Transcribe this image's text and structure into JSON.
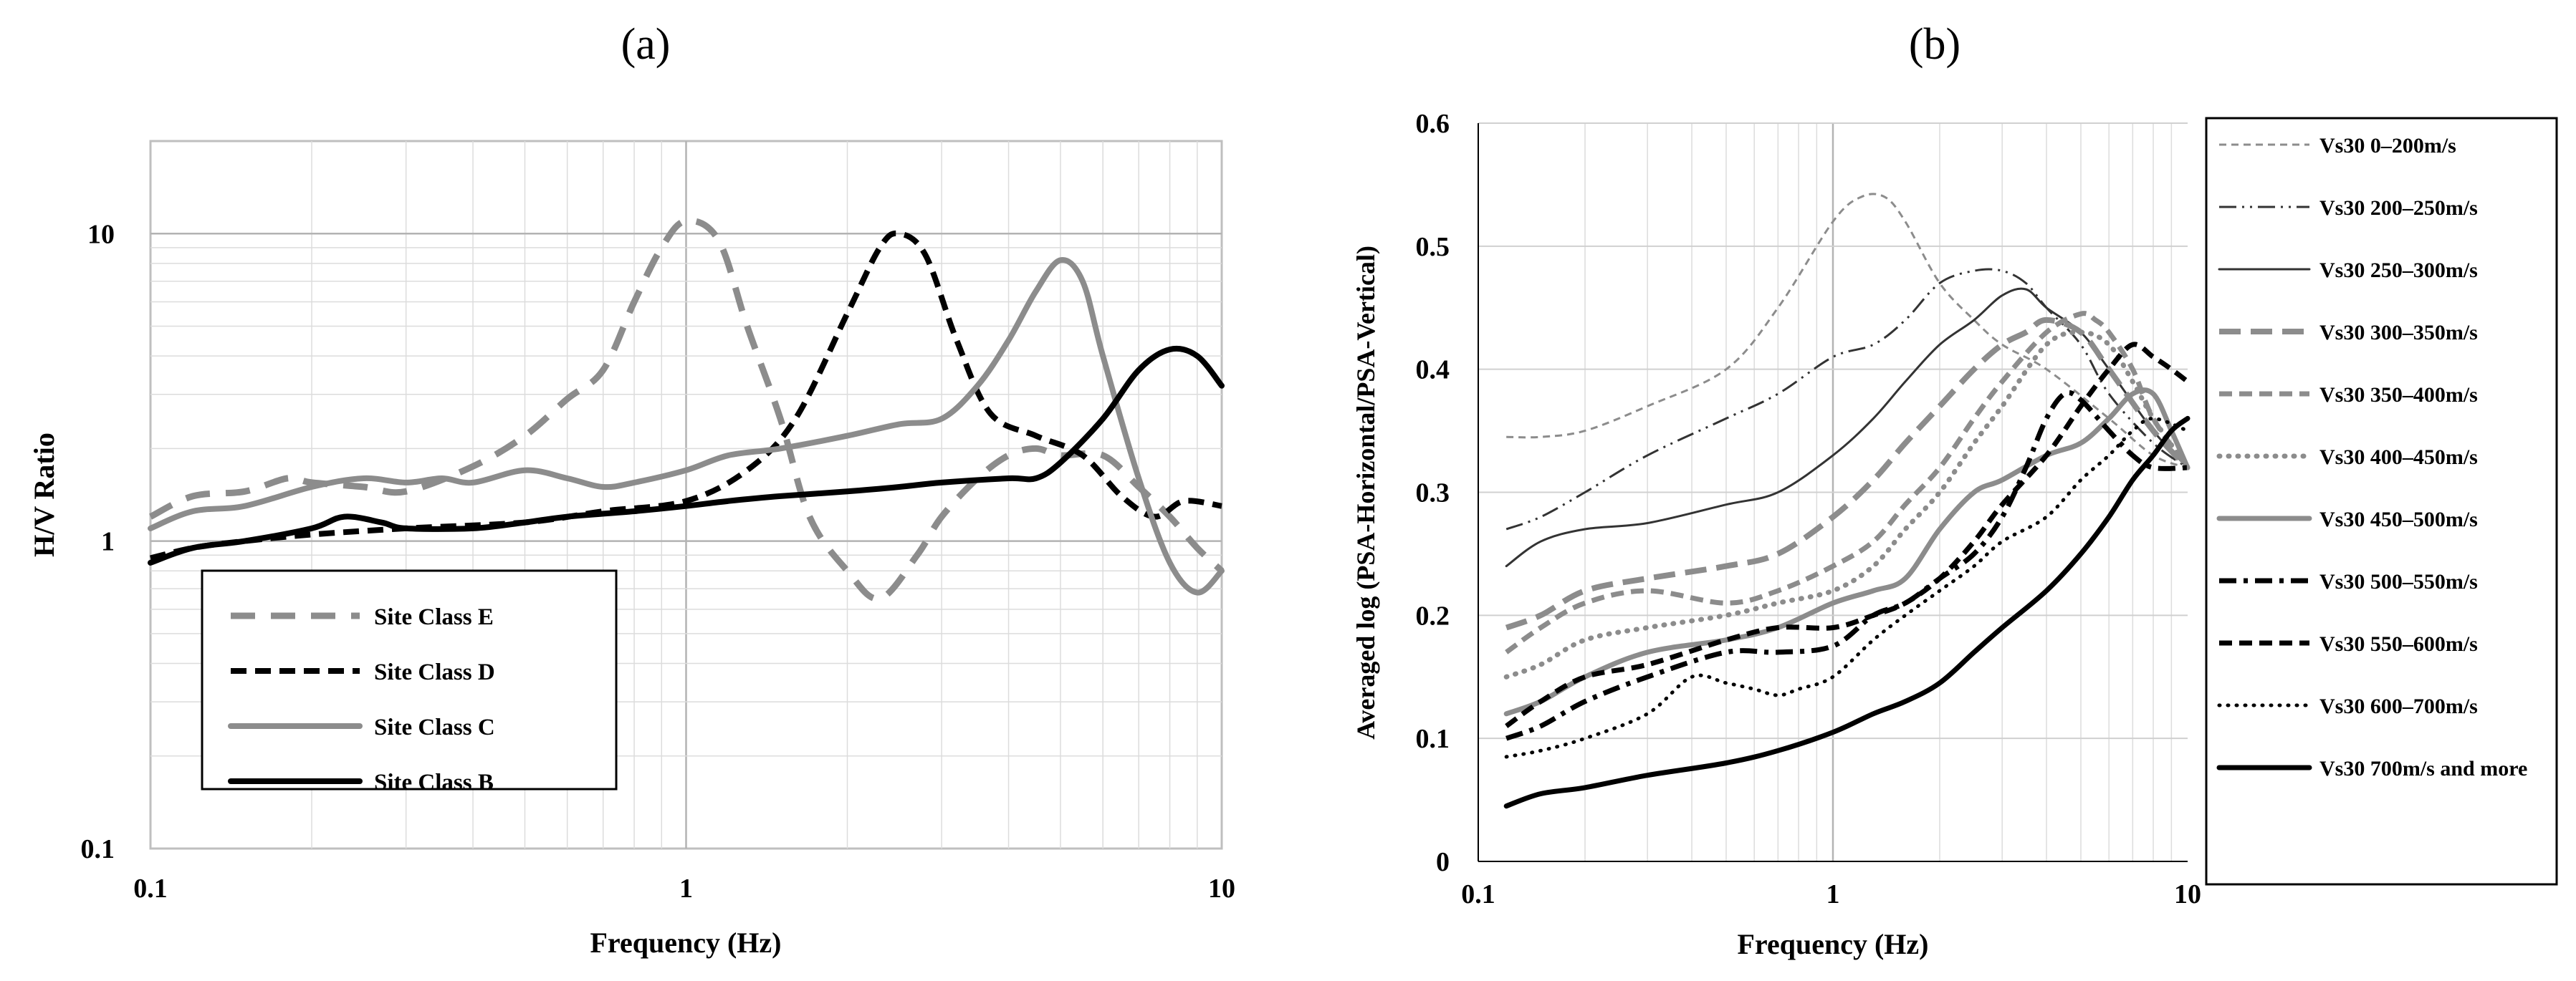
{
  "chart_data": [
    {
      "panel_label": "(a)",
      "type": "line",
      "xlabel": "Frequency (Hz)",
      "ylabel": "H/V Ratio",
      "xscale": "log",
      "yscale": "log",
      "xlim": [
        0.1,
        10
      ],
      "ylim": [
        0.1,
        20
      ],
      "xticks": [
        0.1,
        1,
        10
      ],
      "xtick_labels": [
        "0.1",
        "1",
        "10"
      ],
      "yticks": [
        0.1,
        1,
        10
      ],
      "ytick_labels": [
        "0.1",
        "1",
        "10"
      ],
      "grid": true,
      "legend_position": "bottom-left",
      "series": [
        {
          "name": "Site Class E",
          "color": "#8c8c8c",
          "dash": "long-dash",
          "x": [
            0.1,
            0.12,
            0.15,
            0.18,
            0.2,
            0.25,
            0.3,
            0.4,
            0.5,
            0.6,
            0.7,
            0.8,
            0.9,
            1.0,
            1.15,
            1.3,
            1.5,
            1.7,
            2.0,
            2.3,
            2.7,
            3.0,
            3.5,
            4.0,
            4.5,
            5.0,
            6.0,
            7.0,
            8.0,
            9.0,
            10.0
          ],
          "y": [
            1.2,
            1.4,
            1.45,
            1.6,
            1.55,
            1.5,
            1.45,
            1.75,
            2.2,
            2.9,
            3.6,
            6.0,
            9.0,
            11.0,
            9.5,
            5.0,
            2.5,
            1.2,
            0.8,
            0.65,
            0.9,
            1.2,
            1.6,
            1.9,
            2.0,
            1.9,
            1.9,
            1.5,
            1.2,
            0.95,
            0.8
          ]
        },
        {
          "name": "Site Class D",
          "color": "#000000",
          "dash": "dash",
          "x": [
            0.1,
            0.12,
            0.15,
            0.2,
            0.3,
            0.5,
            0.7,
            1.0,
            1.3,
            1.6,
            2.0,
            2.3,
            2.5,
            2.8,
            3.2,
            3.7,
            4.5,
            5.5,
            6.5,
            7.5,
            8.5,
            10.0
          ],
          "y": [
            0.88,
            0.95,
            1.0,
            1.05,
            1.1,
            1.15,
            1.25,
            1.35,
            1.7,
            2.5,
            5.5,
            9.0,
            10.0,
            8.5,
            4.5,
            2.6,
            2.2,
            1.9,
            1.4,
            1.2,
            1.35,
            1.3
          ]
        },
        {
          "name": "Site Class C",
          "color": "#8c8c8c",
          "dash": "solid",
          "x": [
            0.1,
            0.12,
            0.15,
            0.2,
            0.25,
            0.3,
            0.35,
            0.4,
            0.5,
            0.6,
            0.7,
            0.8,
            1.0,
            1.2,
            1.5,
            2.0,
            2.5,
            3.0,
            3.5,
            4.0,
            4.5,
            5.0,
            5.5,
            6.0,
            7.0,
            8.0,
            9.0,
            10.0
          ],
          "y": [
            1.1,
            1.25,
            1.3,
            1.5,
            1.6,
            1.55,
            1.6,
            1.55,
            1.7,
            1.6,
            1.5,
            1.55,
            1.7,
            1.9,
            2.0,
            2.2,
            2.4,
            2.5,
            3.2,
            4.5,
            6.5,
            8.2,
            7.0,
            4.0,
            1.6,
            0.85,
            0.68,
            0.8
          ]
        },
        {
          "name": "Site Class B",
          "color": "#000000",
          "dash": "solid",
          "x": [
            0.1,
            0.12,
            0.15,
            0.2,
            0.23,
            0.27,
            0.3,
            0.4,
            0.5,
            0.6,
            0.8,
            1.0,
            1.2,
            1.5,
            2.0,
            2.5,
            3.0,
            4.0,
            4.5,
            5.0,
            6.0,
            7.0,
            8.0,
            9.0,
            10.0
          ],
          "y": [
            0.85,
            0.95,
            1.0,
            1.1,
            1.2,
            1.15,
            1.1,
            1.1,
            1.15,
            1.2,
            1.25,
            1.3,
            1.35,
            1.4,
            1.45,
            1.5,
            1.55,
            1.6,
            1.6,
            1.8,
            2.5,
            3.6,
            4.2,
            4.0,
            3.2
          ]
        }
      ]
    },
    {
      "panel_label": "(b)",
      "type": "line",
      "xlabel": "Frequency (Hz)",
      "ylabel": "Averaged log (PSA-Horizontal/PSA-Vertical)",
      "xscale": "log",
      "yscale": "linear",
      "xlim": [
        0.1,
        10
      ],
      "ylim": [
        0,
        0.6
      ],
      "xticks": [
        0.1,
        1,
        10
      ],
      "xtick_labels": [
        "0.1",
        "1",
        "10"
      ],
      "yticks": [
        0,
        0.1,
        0.2,
        0.3,
        0.4,
        0.5,
        0.6
      ],
      "ytick_labels": [
        "0",
        "0.1",
        "0.2",
        "0.3",
        "0.4",
        "0.5",
        "0.6"
      ],
      "grid": true,
      "legend_position": "right",
      "series": [
        {
          "name": "Vs30 0–200m/s",
          "color": "#8c8c8c",
          "dash": "short-dash-thin",
          "x": [
            0.12,
            0.15,
            0.2,
            0.3,
            0.5,
            0.7,
            1.0,
            1.2,
            1.4,
            1.6,
            2.0,
            2.5,
            3.0,
            4.0,
            6.0,
            8.0,
            10.0
          ],
          "y": [
            0.345,
            0.345,
            0.35,
            0.37,
            0.4,
            0.45,
            0.52,
            0.54,
            0.54,
            0.52,
            0.47,
            0.44,
            0.42,
            0.4,
            0.36,
            0.33,
            0.32
          ]
        },
        {
          "name": "Vs30 200–250m/s",
          "color": "#333333",
          "dash": "dash-dot-dot-thin",
          "x": [
            0.12,
            0.15,
            0.2,
            0.3,
            0.5,
            0.7,
            1.0,
            1.3,
            1.6,
            2.0,
            2.5,
            3.0,
            3.5,
            4.0,
            5.0,
            6.0,
            8.0,
            10.0
          ],
          "y": [
            0.27,
            0.28,
            0.3,
            0.33,
            0.36,
            0.38,
            0.41,
            0.42,
            0.44,
            0.47,
            0.48,
            0.48,
            0.47,
            0.45,
            0.42,
            0.38,
            0.34,
            0.32
          ]
        },
        {
          "name": "Vs30 250–300m/s",
          "color": "#333333",
          "dash": "solid-thin",
          "x": [
            0.12,
            0.15,
            0.2,
            0.3,
            0.5,
            0.7,
            1.0,
            1.3,
            1.6,
            2.0,
            2.5,
            3.0,
            3.5,
            4.0,
            5.0,
            6.0,
            8.0,
            10.0
          ],
          "y": [
            0.24,
            0.26,
            0.27,
            0.275,
            0.29,
            0.3,
            0.33,
            0.36,
            0.39,
            0.42,
            0.44,
            0.46,
            0.465,
            0.45,
            0.43,
            0.4,
            0.35,
            0.32
          ]
        },
        {
          "name": "Vs30 300–350m/s",
          "color": "#8c8c8c",
          "dash": "long-dash-thick",
          "x": [
            0.12,
            0.15,
            0.2,
            0.3,
            0.5,
            0.7,
            1.0,
            1.3,
            1.6,
            2.0,
            2.5,
            3.0,
            3.5,
            4.0,
            5.0,
            6.0,
            8.0,
            10.0
          ],
          "y": [
            0.19,
            0.2,
            0.22,
            0.23,
            0.24,
            0.25,
            0.28,
            0.31,
            0.34,
            0.37,
            0.4,
            0.42,
            0.43,
            0.44,
            0.43,
            0.4,
            0.35,
            0.32
          ]
        },
        {
          "name": "Vs30 350–400m/s",
          "color": "#8c8c8c",
          "dash": "dash-thick",
          "x": [
            0.12,
            0.15,
            0.2,
            0.3,
            0.5,
            0.7,
            1.0,
            1.3,
            1.6,
            2.0,
            2.5,
            3.0,
            4.0,
            5.0,
            5.5,
            6.0,
            7.0,
            8.0,
            10.0
          ],
          "y": [
            0.17,
            0.19,
            0.21,
            0.22,
            0.21,
            0.22,
            0.24,
            0.26,
            0.29,
            0.32,
            0.36,
            0.39,
            0.43,
            0.445,
            0.44,
            0.43,
            0.4,
            0.36,
            0.32
          ]
        },
        {
          "name": "Vs30 400–450m/s",
          "color": "#8c8c8c",
          "dash": "dot-thick",
          "x": [
            0.12,
            0.15,
            0.2,
            0.3,
            0.5,
            0.7,
            1.0,
            1.3,
            1.6,
            2.0,
            2.5,
            3.0,
            4.0,
            5.0,
            6.0,
            7.0,
            8.0,
            10.0
          ],
          "y": [
            0.15,
            0.16,
            0.18,
            0.19,
            0.2,
            0.21,
            0.22,
            0.24,
            0.27,
            0.3,
            0.34,
            0.37,
            0.42,
            0.43,
            0.42,
            0.39,
            0.36,
            0.32
          ]
        },
        {
          "name": "Vs30 450–500m/s",
          "color": "#8c8c8c",
          "dash": "solid-thick",
          "x": [
            0.12,
            0.15,
            0.2,
            0.3,
            0.5,
            0.7,
            1.0,
            1.3,
            1.6,
            2.0,
            2.5,
            3.0,
            4.0,
            5.0,
            6.0,
            7.0,
            8.0,
            9.0,
            10.0
          ],
          "y": [
            0.12,
            0.13,
            0.15,
            0.17,
            0.18,
            0.19,
            0.21,
            0.22,
            0.23,
            0.27,
            0.3,
            0.31,
            0.33,
            0.34,
            0.36,
            0.38,
            0.38,
            0.35,
            0.32
          ]
        },
        {
          "name": "Vs30 500–550m/s",
          "color": "#000000",
          "dash": "dash-dot-thick",
          "x": [
            0.12,
            0.15,
            0.2,
            0.3,
            0.5,
            0.7,
            1.0,
            1.3,
            1.6,
            2.0,
            2.5,
            3.0,
            3.5,
            4.0,
            4.5,
            5.0,
            6.0,
            7.0,
            8.0,
            10.0
          ],
          "y": [
            0.1,
            0.11,
            0.13,
            0.15,
            0.17,
            0.17,
            0.175,
            0.2,
            0.21,
            0.23,
            0.25,
            0.28,
            0.32,
            0.36,
            0.38,
            0.375,
            0.35,
            0.33,
            0.32,
            0.32
          ]
        },
        {
          "name": "Vs30 550–600m/s",
          "color": "#000000",
          "dash": "dash-thick",
          "x": [
            0.12,
            0.15,
            0.2,
            0.3,
            0.5,
            0.7,
            1.0,
            1.3,
            1.6,
            2.0,
            2.5,
            3.0,
            4.0,
            5.0,
            6.0,
            7.0,
            8.0,
            9.0,
            10.0
          ],
          "y": [
            0.11,
            0.13,
            0.15,
            0.16,
            0.18,
            0.19,
            0.19,
            0.2,
            0.21,
            0.23,
            0.26,
            0.29,
            0.33,
            0.37,
            0.4,
            0.42,
            0.41,
            0.4,
            0.39
          ]
        },
        {
          "name": "Vs30 600–700m/s",
          "color": "#000000",
          "dash": "dot",
          "x": [
            0.12,
            0.15,
            0.2,
            0.3,
            0.4,
            0.5,
            0.6,
            0.7,
            0.8,
            1.0,
            1.3,
            1.6,
            2.0,
            2.5,
            3.0,
            4.0,
            5.0,
            6.0,
            7.0,
            8.0,
            10.0
          ],
          "y": [
            0.085,
            0.09,
            0.1,
            0.12,
            0.15,
            0.145,
            0.14,
            0.135,
            0.14,
            0.15,
            0.18,
            0.2,
            0.22,
            0.24,
            0.26,
            0.28,
            0.31,
            0.33,
            0.35,
            0.36,
            0.35
          ]
        },
        {
          "name": "Vs30 700m/s and more",
          "color": "#000000",
          "dash": "solid-thick",
          "x": [
            0.12,
            0.15,
            0.2,
            0.3,
            0.5,
            0.7,
            1.0,
            1.3,
            1.6,
            2.0,
            2.5,
            3.0,
            4.0,
            5.0,
            6.0,
            7.0,
            8.0,
            9.0,
            10.0
          ],
          "y": [
            0.045,
            0.055,
            0.06,
            0.07,
            0.08,
            0.09,
            0.105,
            0.12,
            0.13,
            0.145,
            0.17,
            0.19,
            0.22,
            0.25,
            0.28,
            0.31,
            0.33,
            0.35,
            0.36
          ]
        }
      ]
    }
  ]
}
